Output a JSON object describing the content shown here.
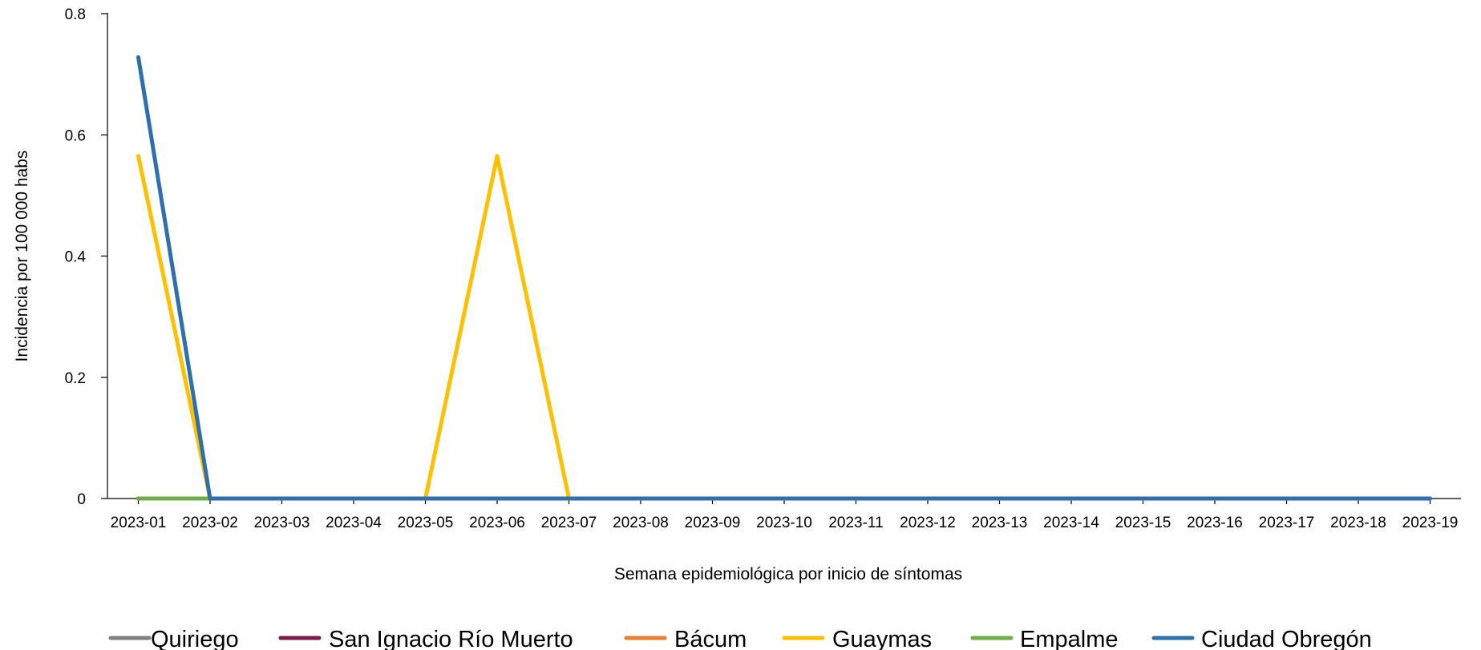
{
  "chart_data": {
    "type": "line",
    "title": "",
    "xlabel": "Semana epidemiológica  por inicio de síntomas",
    "ylabel": "Incidencia  por  100  000  habs",
    "ylim": [
      0,
      0.8
    ],
    "y_ticks": [
      "0",
      "0.2",
      "0.4",
      "0.6",
      "0.8"
    ],
    "y_tick_values": [
      0,
      0.2,
      0.4,
      0.6,
      0.8
    ],
    "grid": false,
    "legend_position": "bottom",
    "categories": [
      "2023-01",
      "2023-02",
      "2023-03",
      "2023-04",
      "2023-05",
      "2023-06",
      "2023-07",
      "2023-08",
      "2023-09",
      "2023-10",
      "2023-11",
      "2023-12",
      "2023-13",
      "2023-14",
      "2023-15",
      "2023-16",
      "2023-17",
      "2023-18",
      "2023-19"
    ],
    "series": [
      {
        "name": "Quiriego",
        "color": "#808080",
        "values": [
          0,
          0,
          0,
          0,
          0,
          0,
          0,
          0,
          0,
          0,
          0,
          0,
          0,
          0,
          0,
          0,
          0,
          0,
          0
        ]
      },
      {
        "name": "San Ignacio Río Muerto",
        "color": "#7B1A4B",
        "values": [
          0,
          0,
          0,
          0,
          0,
          0,
          0,
          0,
          0,
          0,
          0,
          0,
          0,
          0,
          0,
          0,
          0,
          0,
          0
        ]
      },
      {
        "name": "Bácum",
        "color": "#ED7D31",
        "values": [
          0,
          0,
          0,
          0,
          0,
          0,
          0,
          0,
          0,
          0,
          0,
          0,
          0,
          0,
          0,
          0,
          0,
          0,
          0
        ]
      },
      {
        "name": "Guaymas",
        "color": "#FFC000",
        "values": [
          0.565,
          0,
          0,
          0,
          0,
          0.565,
          0,
          0,
          0,
          0,
          0,
          0,
          0,
          0,
          0,
          0,
          0,
          0,
          0
        ]
      },
      {
        "name": "Empalme",
        "color": "#70AD47",
        "values": [
          0,
          0,
          0,
          0,
          0,
          0,
          0,
          0,
          0,
          0,
          0,
          0,
          0,
          0,
          0,
          0,
          0,
          0,
          0
        ]
      },
      {
        "name": "Ciudad Obregón",
        "color": "#2E6FAE",
        "values": [
          0.728,
          0,
          0,
          0,
          0,
          0,
          0,
          0,
          0,
          0,
          0,
          0,
          0,
          0,
          0,
          0,
          0,
          0,
          0
        ]
      }
    ]
  }
}
